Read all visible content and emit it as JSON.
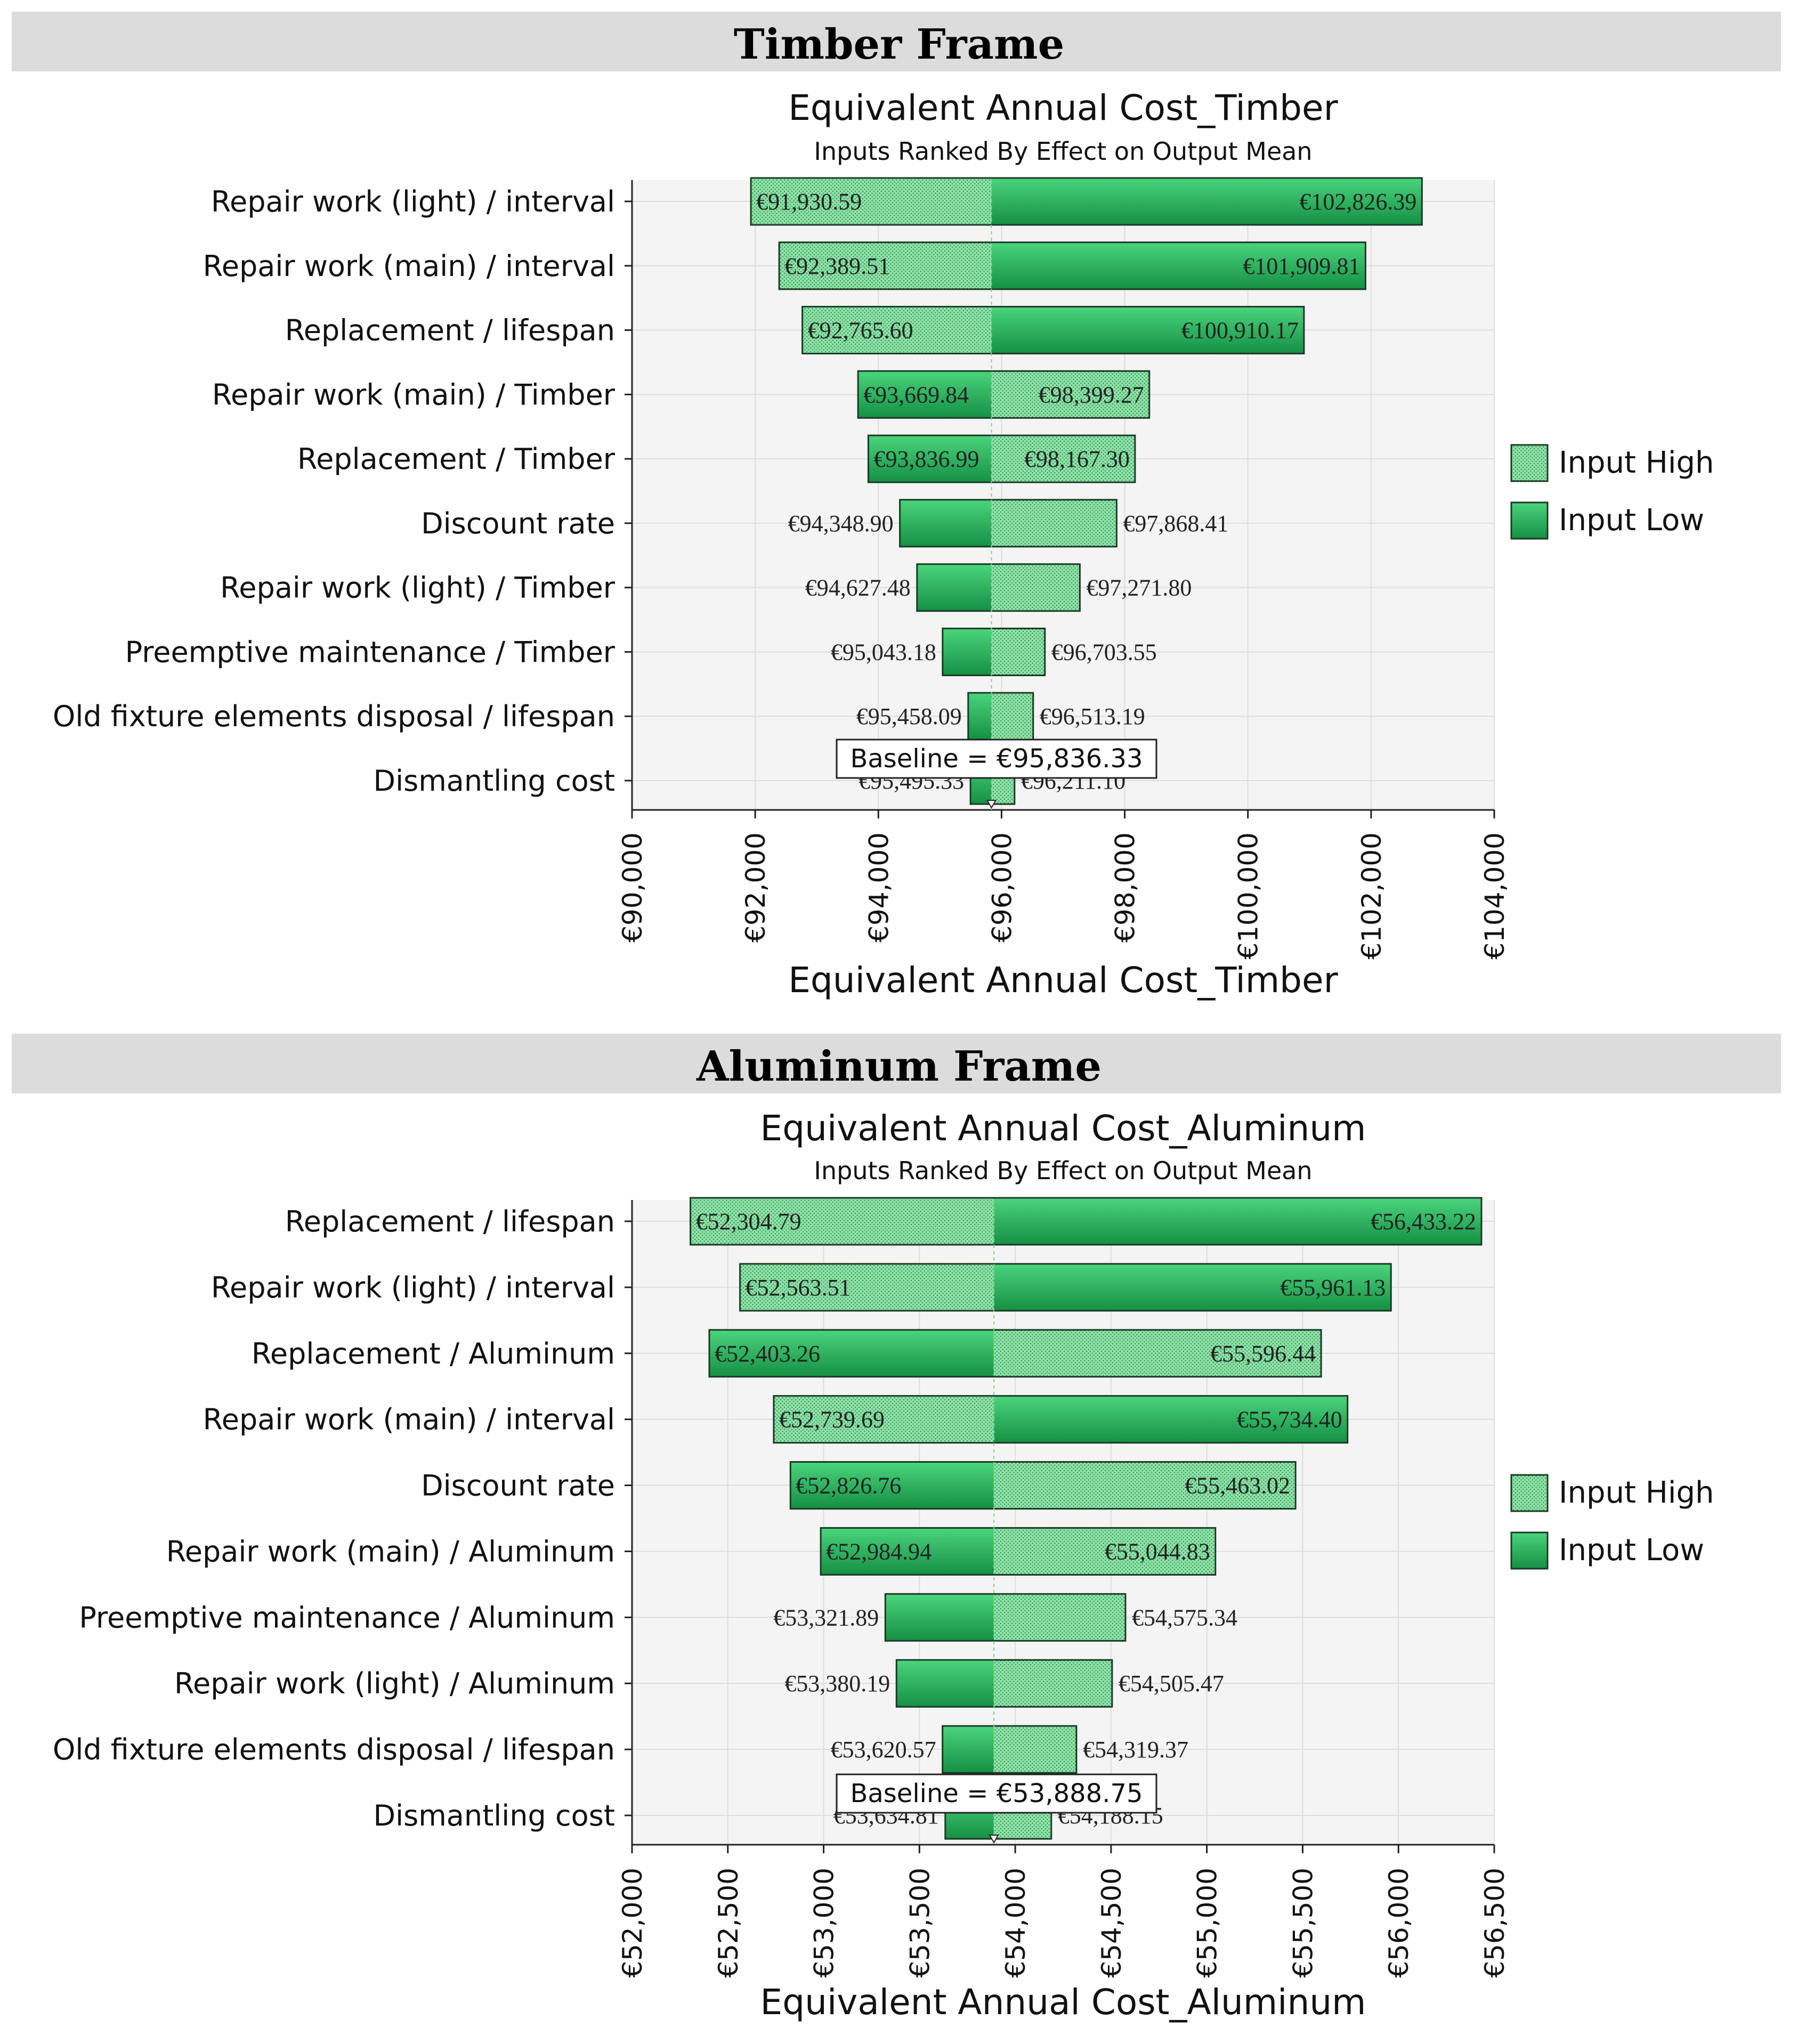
{
  "colors": {
    "band": "#dcdcdc",
    "plot_bg": "#f4f4f4",
    "grid": "#dddddd",
    "high_fill": "#8fe0a8",
    "low_fill_light": "#3ec46f",
    "low_fill_dark": "#158a44",
    "bar_stroke": "#1a3a24"
  },
  "legend": {
    "high": "Input High",
    "low": "Input Low"
  },
  "chart_data": [
    {
      "type": "tornado",
      "section_title": "Timber Frame",
      "title": "Equivalent Annual Cost_Timber",
      "subtitle": "Inputs Ranked By Effect on Output Mean",
      "xlabel": "Equivalent Annual Cost_Timber",
      "baseline": 95836.33,
      "baseline_label": "Baseline = €95,836.33",
      "xlim": [
        90000,
        104000
      ],
      "ticks": [
        90000,
        92000,
        94000,
        96000,
        98000,
        100000,
        102000,
        104000
      ],
      "tick_labels": [
        "€90,000",
        "€92,000",
        "€94,000",
        "€96,000",
        "€98,000",
        "€100,000",
        "€102,000",
        "€104,000"
      ],
      "rows": [
        {
          "label": "Repair work (light) / interval",
          "min": 91930.59,
          "max": 102826.39,
          "min_label": "€91,930.59",
          "max_label": "€102,826.39",
          "min_input": "high",
          "labels_inside": true
        },
        {
          "label": "Repair work (main) / interval",
          "min": 92389.51,
          "max": 101909.81,
          "min_label": "€92,389.51",
          "max_label": "€101,909.81",
          "min_input": "high",
          "labels_inside": true
        },
        {
          "label": "Replacement / lifespan",
          "min": 92765.6,
          "max": 100910.17,
          "min_label": "€92,765.60",
          "max_label": "€100,910.17",
          "min_input": "high",
          "labels_inside": true
        },
        {
          "label": "Repair work (main) / Timber",
          "min": 93669.84,
          "max": 98399.27,
          "min_label": "€93,669.84",
          "max_label": "€98,399.27",
          "min_input": "low",
          "labels_inside": true
        },
        {
          "label": "Replacement / Timber",
          "min": 93836.99,
          "max": 98167.3,
          "min_label": "€93,836.99",
          "max_label": "€98,167.30",
          "min_input": "low",
          "labels_inside": true
        },
        {
          "label": "Discount rate",
          "min": 94348.9,
          "max": 97868.41,
          "min_label": "€94,348.90",
          "max_label": "€97,868.41",
          "min_input": "low",
          "labels_inside": false
        },
        {
          "label": "Repair work (light) / Timber",
          "min": 94627.48,
          "max": 97271.8,
          "min_label": "€94,627.48",
          "max_label": "€97,271.80",
          "min_input": "low",
          "labels_inside": false
        },
        {
          "label": "Preemptive maintenance / Timber",
          "min": 95043.18,
          "max": 96703.55,
          "min_label": "€95,043.18",
          "max_label": "€96,703.55",
          "min_input": "low",
          "labels_inside": false
        },
        {
          "label": "Old fixture elements disposal / lifespan",
          "min": 95458.09,
          "max": 96513.19,
          "min_label": "€95,458.09",
          "max_label": "€96,513.19",
          "min_input": "low",
          "labels_inside": false
        },
        {
          "label": "Dismantling cost",
          "min": 95495.33,
          "max": 96211.1,
          "min_label": "€95,495.33",
          "max_label": "€96,211.10",
          "min_input": "low",
          "labels_inside": false
        }
      ]
    },
    {
      "type": "tornado",
      "section_title": "Aluminum Frame",
      "title": "Equivalent Annual Cost_Aluminum",
      "subtitle": "Inputs Ranked By Effect on Output Mean",
      "xlabel": "Equivalent Annual Cost_Aluminum",
      "baseline": 53888.75,
      "baseline_label": "Baseline = €53,888.75",
      "xlim": [
        52000,
        56500
      ],
      "ticks": [
        52000,
        52500,
        53000,
        53500,
        54000,
        54500,
        55000,
        55500,
        56000,
        56500
      ],
      "tick_labels": [
        "€52,000",
        "€52,500",
        "€53,000",
        "€53,500",
        "€54,000",
        "€54,500",
        "€55,000",
        "€55,500",
        "€56,000",
        "€56,500"
      ],
      "rows": [
        {
          "label": "Replacement / lifespan",
          "min": 52304.79,
          "max": 56433.22,
          "min_label": "€52,304.79",
          "max_label": "€56,433.22",
          "min_input": "high",
          "labels_inside": true
        },
        {
          "label": "Repair work (light) / interval",
          "min": 52563.51,
          "max": 55961.13,
          "min_label": "€52,563.51",
          "max_label": "€55,961.13",
          "min_input": "high",
          "labels_inside": true
        },
        {
          "label": "Replacement / Aluminum",
          "min": 52403.26,
          "max": 55596.44,
          "min_label": "€52,403.26",
          "max_label": "€55,596.44",
          "min_input": "low",
          "labels_inside": true
        },
        {
          "label": "Repair work (main) / interval",
          "min": 52739.69,
          "max": 55734.4,
          "min_label": "€52,739.69",
          "max_label": "€55,734.40",
          "min_input": "high",
          "labels_inside": true
        },
        {
          "label": "Discount rate",
          "min": 52826.76,
          "max": 55463.02,
          "min_label": "€52,826.76",
          "max_label": "€55,463.02",
          "min_input": "low",
          "labels_inside": true
        },
        {
          "label": "Repair work (main) / Aluminum",
          "min": 52984.94,
          "max": 55044.83,
          "min_label": "€52,984.94",
          "max_label": "€55,044.83",
          "min_input": "low",
          "labels_inside": true
        },
        {
          "label": "Preemptive maintenance / Aluminum",
          "min": 53321.89,
          "max": 54575.34,
          "min_label": "€53,321.89",
          "max_label": "€54,575.34",
          "min_input": "low",
          "labels_inside": false
        },
        {
          "label": "Repair work (light) / Aluminum",
          "min": 53380.19,
          "max": 54505.47,
          "min_label": "€53,380.19",
          "max_label": "€54,505.47",
          "min_input": "low",
          "labels_inside": false
        },
        {
          "label": "Old fixture elements disposal / lifespan",
          "min": 53620.57,
          "max": 54319.37,
          "min_label": "€53,620.57",
          "max_label": "€54,319.37",
          "min_input": "low",
          "labels_inside": false
        },
        {
          "label": "Dismantling cost",
          "min": 53634.81,
          "max": 54188.15,
          "min_label": "€53,634.81",
          "max_label": "€54,188.15",
          "min_input": "low",
          "labels_inside": false
        }
      ]
    }
  ]
}
